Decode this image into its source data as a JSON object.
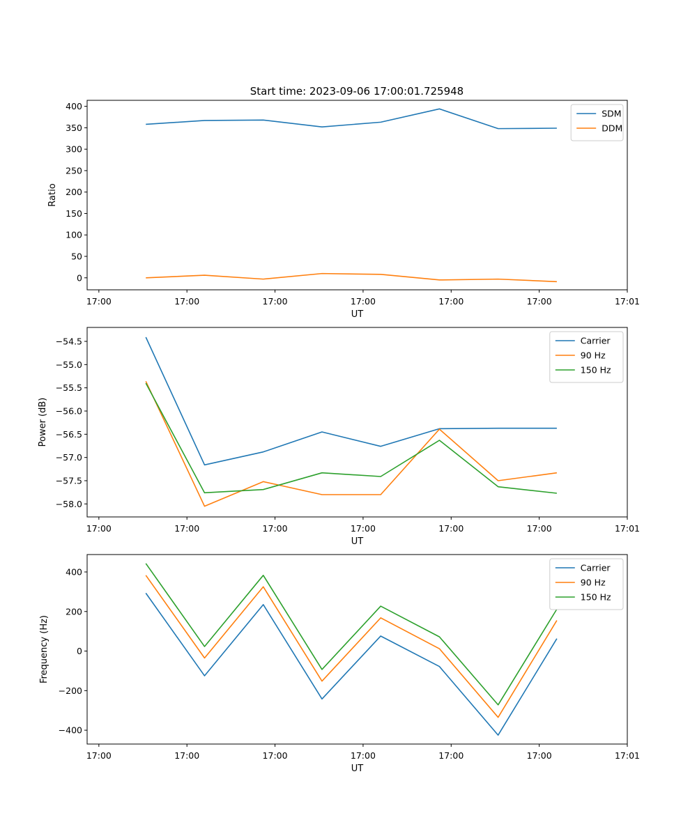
{
  "figure_title": "Start time: 2023-09-06 17:00:01.725948",
  "colors": {
    "series1": "#1f77b4",
    "series2": "#ff7f0e",
    "series3": "#2ca02c"
  },
  "chart_data": [
    {
      "type": "line",
      "xlabel": "UT",
      "ylabel": "Ratio",
      "xlim": [
        0,
        9.2
      ],
      "ylim": [
        -28,
        414
      ],
      "yticks": [
        0,
        50,
        100,
        150,
        200,
        250,
        300,
        350,
        400
      ],
      "ytick_labels": [
        "0",
        "50",
        "100",
        "150",
        "200",
        "250",
        "300",
        "350",
        "400"
      ],
      "xticks": [
        0.2,
        1.7,
        3.2,
        4.7,
        6.2,
        7.7,
        9.2
      ],
      "xtick_labels": [
        "17:00",
        "17:00",
        "17:00",
        "17:00",
        "17:00",
        "17:00",
        "17:01"
      ],
      "x": [
        1,
        2,
        3,
        4,
        5,
        6,
        7,
        8
      ],
      "legend": "top-right",
      "series": [
        {
          "name": "SDM",
          "values": [
            358,
            367,
            368,
            352,
            363,
            394,
            348,
            349
          ]
        },
        {
          "name": "DDM",
          "values": [
            0,
            6,
            -3,
            10,
            8,
            -5,
            -3,
            -9
          ]
        }
      ]
    },
    {
      "type": "line",
      "xlabel": "UT",
      "ylabel": "Power (dB)",
      "xlim": [
        0,
        9.2
      ],
      "ylim": [
        -58.28,
        -54.2
      ],
      "yticks": [
        -58.0,
        -57.5,
        -57.0,
        -56.5,
        -56.0,
        -55.5,
        -55.0,
        -54.5
      ],
      "ytick_labels": [
        "−58.0",
        "−57.5",
        "−57.0",
        "−56.5",
        "−56.0",
        "−55.5",
        "−55.0",
        "−54.5"
      ],
      "xticks": [
        0.2,
        1.7,
        3.2,
        4.7,
        6.2,
        7.7,
        9.2
      ],
      "xtick_labels": [
        "17:00",
        "17:00",
        "17:00",
        "17:00",
        "17:00",
        "17:00",
        "17:01"
      ],
      "x": [
        1,
        2,
        3,
        4,
        5,
        6,
        7,
        8
      ],
      "legend": "top-right",
      "series": [
        {
          "name": "Carrier",
          "values": [
            -54.41,
            -57.16,
            -56.88,
            -56.45,
            -56.76,
            -56.38,
            -56.37,
            -56.37
          ]
        },
        {
          "name": "90 Hz",
          "values": [
            -55.36,
            -58.05,
            -57.52,
            -57.8,
            -57.8,
            -56.39,
            -57.5,
            -57.33
          ]
        },
        {
          "name": "150 Hz",
          "values": [
            -55.4,
            -57.76,
            -57.69,
            -57.33,
            -57.41,
            -56.63,
            -57.63,
            -57.77
          ]
        }
      ]
    },
    {
      "type": "line",
      "xlabel": "UT",
      "ylabel": "Frequency (Hz)",
      "xlim": [
        0,
        9.2
      ],
      "ylim": [
        -470,
        488
      ],
      "yticks": [
        -400,
        -200,
        0,
        200,
        400
      ],
      "ytick_labels": [
        "−400",
        "−200",
        "0",
        "200",
        "400"
      ],
      "xticks": [
        0.2,
        1.7,
        3.2,
        4.7,
        6.2,
        7.7,
        9.2
      ],
      "xtick_labels": [
        "17:00",
        "17:00",
        "17:00",
        "17:00",
        "17:00",
        "17:00",
        "17:01"
      ],
      "x": [
        1,
        2,
        3,
        4,
        5,
        6,
        7,
        8
      ],
      "legend": "top-right",
      "series": [
        {
          "name": "Carrier",
          "values": [
            293,
            -125,
            235,
            -242,
            76,
            -78,
            -425,
            63
          ]
        },
        {
          "name": "90 Hz",
          "values": [
            383,
            -35,
            325,
            -152,
            168,
            12,
            -335,
            155
          ]
        },
        {
          "name": "150 Hz",
          "values": [
            443,
            23,
            383,
            -93,
            227,
            72,
            -272,
            212
          ]
        }
      ]
    }
  ]
}
